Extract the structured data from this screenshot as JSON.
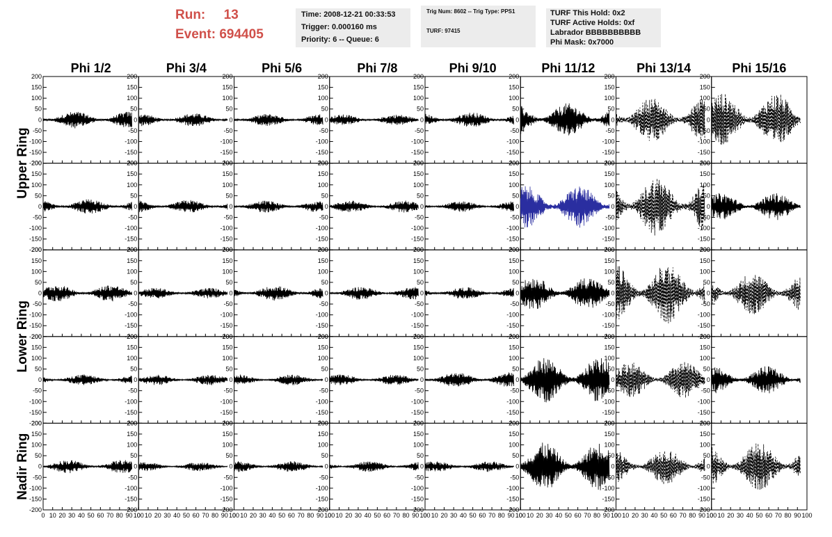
{
  "run_info": {
    "run_label": "Run:",
    "run_value": "13",
    "event_label": "Event:",
    "event_value": "694405"
  },
  "info_boxes": {
    "time": [
      "Time: 2008-12-21 00:33:53",
      "Trigger: 0.000160 ms",
      "Priority: 6 -- Queue: 6"
    ],
    "trig": [
      "Trig Num: 8602 -- Trig Type: PPS1",
      "TURF: 97415"
    ],
    "turf": [
      "TURF This Hold: 0x2",
      "TURF Active Holds: 0xf",
      "Labrador BBBBBBBBBB",
      "Phi Mask: 0x7000"
    ]
  },
  "colors": {
    "accent": "#d0504a",
    "trace": "#000000",
    "highlight_trace": "#2a2ea0",
    "info_bg": "#ececec"
  },
  "chart_data": {
    "type": "line",
    "column_titles": [
      "Phi 1/2",
      "Phi 3/4",
      "Phi 5/6",
      "Phi 7/8",
      "Phi 9/10",
      "Phi 11/12",
      "Phi 13/14",
      "Phi 15/16"
    ],
    "ring_labels": [
      {
        "text": "Upper Ring",
        "rows": [
          0,
          1
        ]
      },
      {
        "text": "Lower Ring",
        "rows": [
          2,
          3
        ]
      },
      {
        "text": "Nadir Ring",
        "rows": [
          4
        ]
      }
    ],
    "xlim": [
      0,
      100
    ],
    "ylim": [
      -200,
      200
    ],
    "x_tick_labels": [
      "0",
      "10",
      "20",
      "30",
      "40",
      "50",
      "60",
      "70",
      "80",
      "90",
      "100"
    ],
    "y_tick_labels": [
      "200",
      "150",
      "100",
      "50",
      "0",
      "-50",
      "-100",
      "-150",
      "-200"
    ],
    "panel_amplitudes": [
      [
        28,
        22,
        20,
        18,
        25,
        55,
        75,
        90
      ],
      [
        25,
        22,
        20,
        20,
        18,
        70,
        100,
        45
      ],
      [
        28,
        18,
        25,
        22,
        20,
        55,
        100,
        70
      ],
      [
        18,
        18,
        18,
        18,
        25,
        75,
        60,
        45
      ],
      [
        22,
        15,
        18,
        18,
        18,
        80,
        60,
        80
      ]
    ],
    "panel_styles": [
      [
        "solid",
        "solid",
        "solid",
        "solid",
        "solid",
        "solid",
        "dashed",
        "dashed"
      ],
      [
        "solid",
        "solid",
        "solid",
        "solid",
        "solid",
        "highlight",
        "dashed",
        "solid"
      ],
      [
        "solid",
        "solid",
        "solid",
        "solid",
        "solid",
        "solid",
        "dashed",
        "dashed"
      ],
      [
        "solid",
        "solid",
        "solid",
        "solid",
        "solid",
        "solid",
        "dashed",
        "solid"
      ],
      [
        "solid",
        "solid",
        "solid",
        "solid",
        "solid",
        "solid",
        "dashed",
        "dashed"
      ]
    ]
  }
}
